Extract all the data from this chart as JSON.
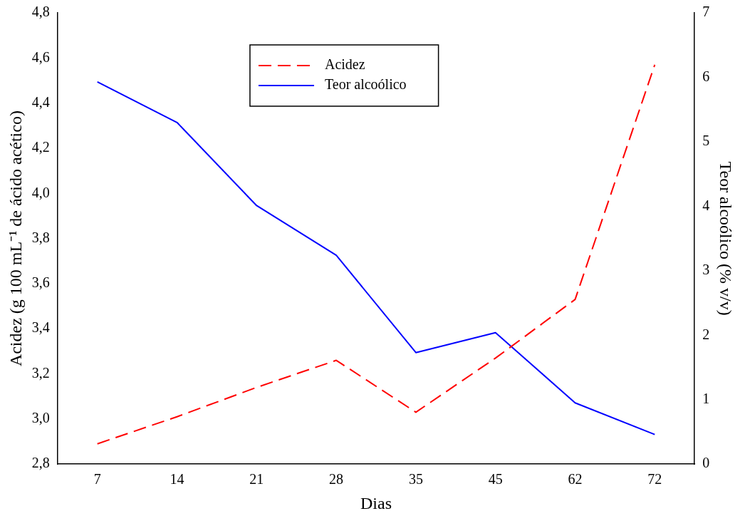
{
  "chart_data": {
    "type": "line",
    "xlabel": "Dias",
    "ylabel": "Acidez (g 100 mL⁻¹ de ácido acético)",
    "y2label": "Teor alcoólico (% v/v)",
    "categories": [
      "7",
      "14",
      "21",
      "28",
      "35",
      "45",
      "62",
      "72"
    ],
    "series": [
      {
        "name": "Acidez",
        "color": "#ff0000",
        "line_style": "dashed",
        "values": [
          2.89,
          3.01,
          3.14,
          3.26,
          3.03,
          3.27,
          3.53,
          4.57
        ]
      },
      {
        "name": "Teor alcoólico",
        "color": "#0000ff",
        "line_style": "solid",
        "axis": "y2",
        "values": [
          5.93,
          5.3,
          4.01,
          3.24,
          1.73,
          2.04,
          0.95,
          0.46
        ]
      }
    ],
    "ylim": [
      2.8,
      4.8
    ],
    "yticks": [
      {
        "value": 2.8,
        "label": "2,8"
      },
      {
        "value": 3.0,
        "label": "3,0"
      },
      {
        "value": 3.2,
        "label": "3,2"
      },
      {
        "value": 3.4,
        "label": "3,4"
      },
      {
        "value": 3.6,
        "label": "3,6"
      },
      {
        "value": 3.8,
        "label": "3,8"
      },
      {
        "value": 4.0,
        "label": "4,0"
      },
      {
        "value": 4.2,
        "label": "4,2"
      },
      {
        "value": 4.4,
        "label": "4,4"
      },
      {
        "value": 4.6,
        "label": "4,6"
      },
      {
        "value": 4.8,
        "label": "4,8"
      }
    ],
    "y2lim": [
      0,
      7
    ],
    "y2ticks": [
      0,
      1,
      2,
      3,
      4,
      5,
      6,
      7
    ],
    "grid": false,
    "legend": "top",
    "marker": "none"
  }
}
